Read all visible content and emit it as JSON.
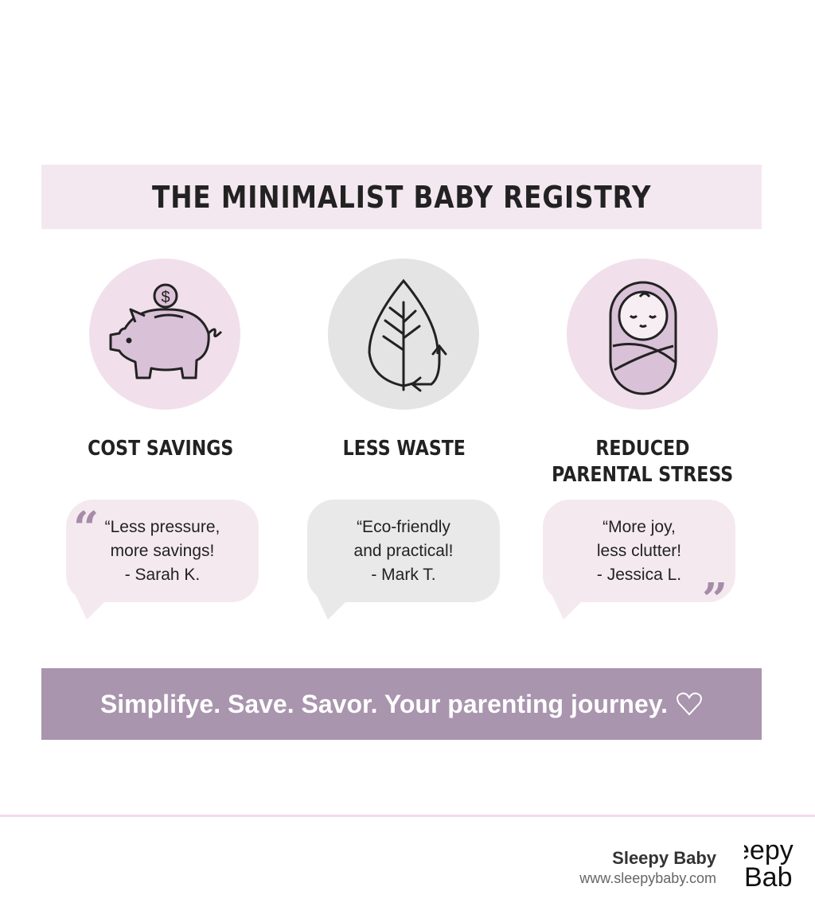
{
  "title": "THE MINIMALIST BABY REGISTRY",
  "benefits": [
    {
      "label": "COST SAVINGS",
      "icon": "piggy-bank-icon",
      "circle_color": "#f1e0eb"
    },
    {
      "label": "LESS WASTE",
      "icon": "leaf-recycle-icon",
      "circle_color": "#e4e4e4"
    },
    {
      "label_line1": "REDUCED",
      "label_line2": "PARENTAL STRESS",
      "icon": "swaddled-baby-icon",
      "circle_color": "#f1e0eb"
    }
  ],
  "testimonials": [
    {
      "line1": "“Less pressure,",
      "line2": "more savings!",
      "author": "- Sarah K.",
      "bg": "#f5e9f0"
    },
    {
      "line1": "“Eco-friendly",
      "line2": "and practical!",
      "author": "- Mark T.",
      "bg": "#e9e9e9"
    },
    {
      "line1": "“More joy,",
      "line2": "less clutter!",
      "author": "- Jessica L.",
      "bg": "#f5e9f0"
    }
  ],
  "quote_open": "“",
  "quote_close": "”",
  "banner": {
    "text": "Simplifye. Save. Savor. Your parenting journey.",
    "icon": "heart-outline-icon",
    "bg": "#a995ae"
  },
  "footer": {
    "brand": "Sleepy Baby",
    "url": "www.sleepybaby.com",
    "logo_text_top": "eepy",
    "logo_text_bottom": "Bab"
  }
}
